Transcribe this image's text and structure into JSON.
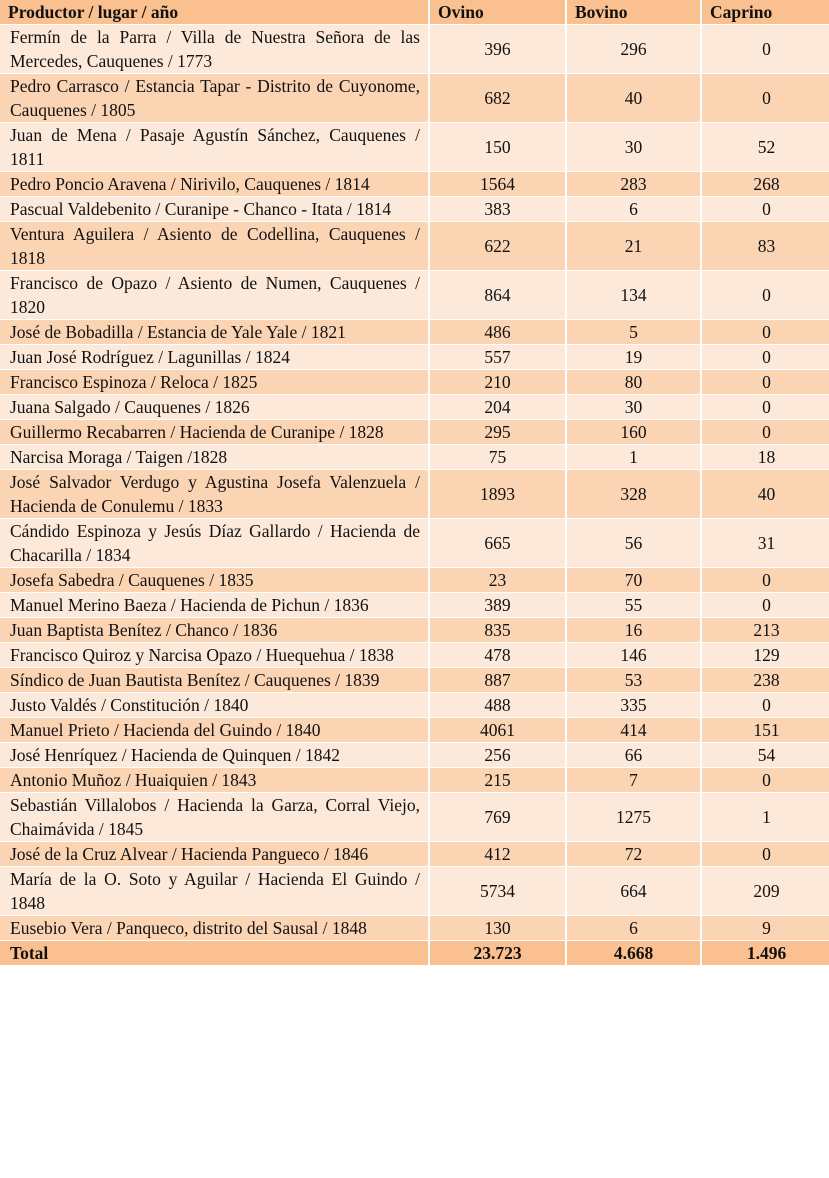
{
  "table": {
    "header": [
      "Productor / lugar / año",
      "Ovino",
      "Bovino",
      "Caprino"
    ],
    "rows": [
      [
        "Fermín de la Parra / Villa de Nuestra Señora de las Mercedes, Cauquenes / 1773",
        396,
        296,
        0
      ],
      [
        "Pedro Carrasco / Estancia Tapar - Distrito de Cuyonome, Cauquenes / 1805",
        682,
        40,
        0
      ],
      [
        "Juan de Mena / Pasaje Agustín Sánchez, Cauquenes / 1811",
        150,
        30,
        52
      ],
      [
        "Pedro Poncio Aravena / Nirivilo, Cauquenes / 1814",
        1564,
        283,
        268
      ],
      [
        "Pascual Valdebenito / Curanipe - Chanco - Itata / 1814",
        383,
        6,
        0
      ],
      [
        "Ventura Aguilera / Asiento de Codellina, Cauquenes / 1818",
        622,
        21,
        83
      ],
      [
        "Francisco de Opazo / Asiento de Numen, Cauquenes / 1820",
        864,
        134,
        0
      ],
      [
        "José de Bobadilla / Estancia de Yale Yale / 1821",
        486,
        5,
        0
      ],
      [
        "Juan José Rodríguez / Lagunillas / 1824",
        557,
        19,
        0
      ],
      [
        "Francisco Espinoza / Reloca / 1825",
        210,
        80,
        0
      ],
      [
        "Juana Salgado / Cauquenes / 1826",
        204,
        30,
        0
      ],
      [
        "Guillermo Recabarren / Hacienda de Curanipe / 1828",
        295,
        160,
        0
      ],
      [
        "Narcisa Moraga / Taigen /1828",
        75,
        1,
        18
      ],
      [
        "José Salvador Verdugo y Agustina Josefa Valenzuela / Hacienda de Conulemu / 1833",
        1893,
        328,
        40
      ],
      [
        "Cándido Espinoza y Jesús Díaz Gallardo / Hacienda de Chacarilla / 1834",
        665,
        56,
        31
      ],
      [
        "Josefa Sabedra / Cauquenes / 1835",
        23,
        70,
        0
      ],
      [
        "Manuel Merino Baeza / Hacienda de Pichun / 1836",
        389,
        55,
        0
      ],
      [
        "Juan Baptista Benítez / Chanco / 1836",
        835,
        16,
        213
      ],
      [
        "Francisco Quiroz y Narcisa Opazo / Huequehua / 1838",
        478,
        146,
        129
      ],
      [
        "Síndico de Juan Bautista Benítez / Cauquenes / 1839",
        887,
        53,
        238
      ],
      [
        "Justo Valdés / Constitución / 1840",
        488,
        335,
        0
      ],
      [
        "Manuel Prieto / Hacienda del Guindo / 1840",
        4061,
        414,
        151
      ],
      [
        "José Henríquez / Hacienda de Quinquen / 1842",
        256,
        66,
        54
      ],
      [
        "Antonio Muñoz / Huaiquien / 1843",
        215,
        7,
        0
      ],
      [
        "Sebastián Villalobos / Hacienda la Garza, Corral Viejo, Chaimávida / 1845",
        769,
        1275,
        1
      ],
      [
        "José de la Cruz Alvear / Hacienda Pangueco / 1846",
        412,
        72,
        0
      ],
      [
        "María de la O. Soto y Aguilar / Hacienda El Guindo / 1848",
        5734,
        664,
        209
      ],
      [
        "Eusebio Vera / Panqueco, distrito del Sausal / 1848",
        130,
        6,
        9
      ]
    ],
    "total": [
      "Total",
      "23.723",
      "4.668",
      "1.496"
    ]
  }
}
